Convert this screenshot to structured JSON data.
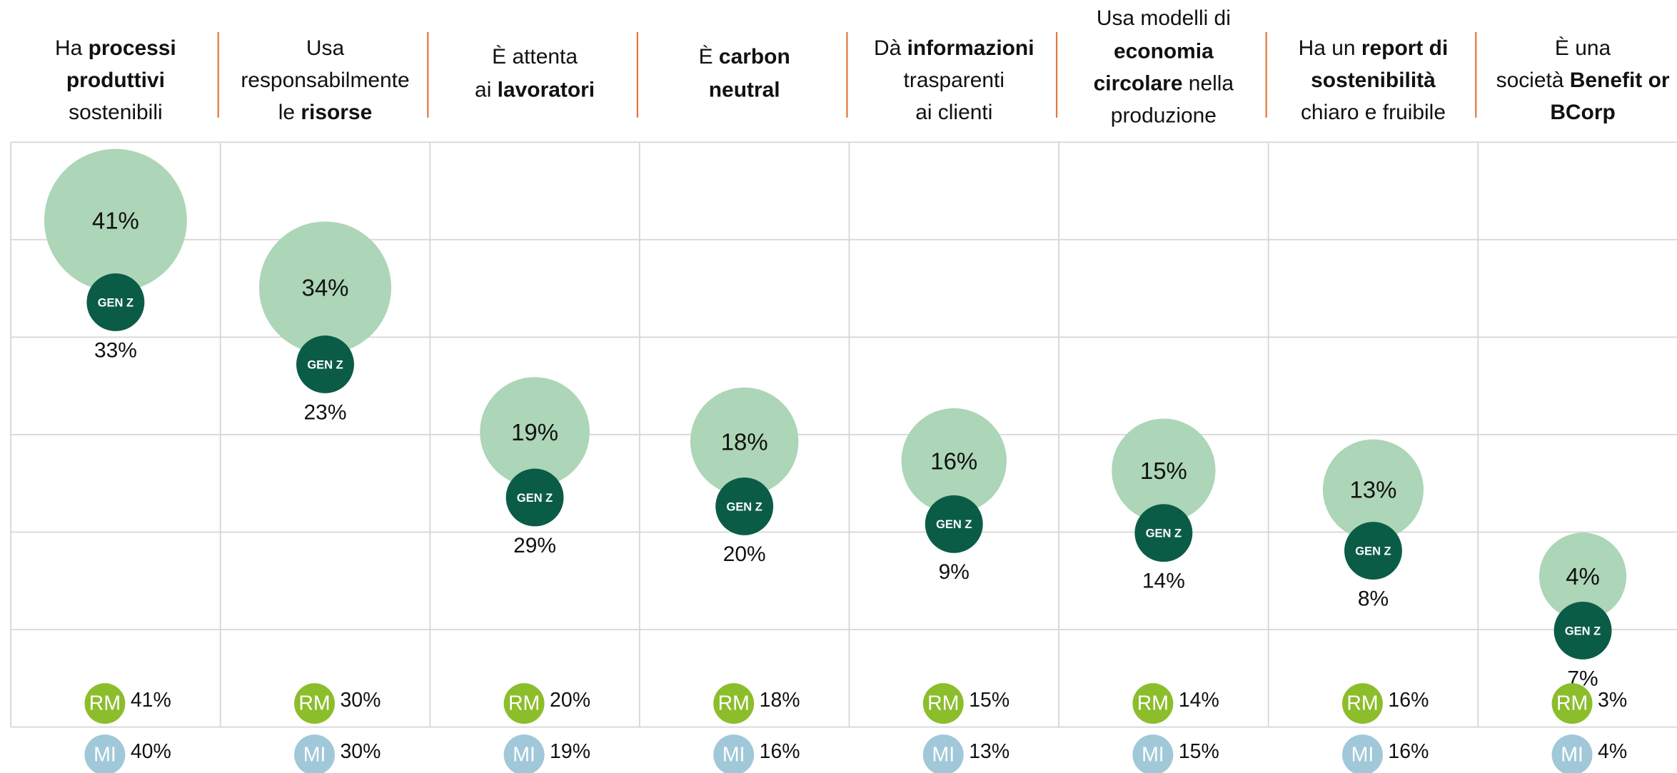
{
  "chart_data": {
    "type": "bubble",
    "categories": [
      [
        [
          {
            "text": "Ha ",
            "bold": false
          },
          {
            "text": "processi",
            "bold": true
          }
        ],
        [
          {
            "text": "produttivi",
            "bold": true
          }
        ],
        [
          {
            "text": "sostenibili",
            "bold": false
          }
        ]
      ],
      [
        [
          {
            "text": "Usa",
            "bold": false
          }
        ],
        [
          {
            "text": "responsabilmente",
            "bold": false
          }
        ],
        [
          {
            "text": "le ",
            "bold": false
          },
          {
            "text": "risorse",
            "bold": true
          }
        ]
      ],
      [
        [
          {
            "text": "È attenta",
            "bold": false
          }
        ],
        [
          {
            "text": "ai ",
            "bold": false
          },
          {
            "text": "lavoratori",
            "bold": true
          }
        ]
      ],
      [
        [
          {
            "text": "È ",
            "bold": false
          },
          {
            "text": "carbon",
            "bold": true
          }
        ],
        [
          {
            "text": "neutral",
            "bold": true
          }
        ]
      ],
      [
        [
          {
            "text": "Dà ",
            "bold": false
          },
          {
            "text": "informazioni",
            "bold": true
          }
        ],
        [
          {
            "text": "trasparenti",
            "bold": false
          }
        ],
        [
          {
            "text": "ai clienti",
            "bold": false
          }
        ]
      ],
      [
        [
          {
            "text": "Usa modelli di",
            "bold": false
          }
        ],
        [
          {
            "text": "economia",
            "bold": true
          }
        ],
        [
          {
            "text": "circolare",
            "bold": true
          },
          {
            "text": " nella",
            "bold": false
          }
        ],
        [
          {
            "text": "produzione",
            "bold": false
          }
        ]
      ],
      [
        [
          {
            "text": "Ha un ",
            "bold": false
          },
          {
            "text": "report di",
            "bold": true
          }
        ],
        [
          {
            "text": "sostenibilità",
            "bold": true
          }
        ],
        [
          {
            "text": "chiaro e fruibile",
            "bold": false
          }
        ]
      ],
      [
        [
          {
            "text": "È una",
            "bold": false
          }
        ],
        [
          {
            "text": "società ",
            "bold": false
          },
          {
            "text": "Benefit or",
            "bold": true
          }
        ],
        [
          {
            "text": "BCorp",
            "bold": true
          }
        ]
      ]
    ],
    "series": [
      {
        "color": "#acd6b7",
        "values": [
          41,
          34,
          19,
          18,
          16,
          15,
          13,
          4
        ],
        "value_labels": [
          "41%",
          "34%",
          "19%",
          "18%",
          "16%",
          "15%",
          "13%",
          "4%"
        ]
      },
      {
        "name": "GEN Z",
        "color": "#0b5c47",
        "values": [
          33,
          23,
          29,
          20,
          9,
          14,
          8,
          7
        ],
        "value_labels": [
          "33%",
          "23%",
          "29%",
          "20%",
          "9%",
          "14%",
          "8%",
          "7%"
        ]
      },
      {
        "name": "RM",
        "color": "#8cbd2b",
        "values": [
          41,
          30,
          20,
          18,
          15,
          14,
          16,
          3
        ],
        "value_labels": [
          "41%",
          "30%",
          "20%",
          "18%",
          "15%",
          "14%",
          "16%",
          "3%"
        ]
      },
      {
        "name": "MI",
        "color": "#a0c8d8",
        "values": [
          40,
          30,
          19,
          16,
          13,
          15,
          16,
          4
        ],
        "value_labels": [
          "40%",
          "30%",
          "19%",
          "16%",
          "13%",
          "15%",
          "16%",
          "4%"
        ]
      }
    ],
    "grid": true
  }
}
